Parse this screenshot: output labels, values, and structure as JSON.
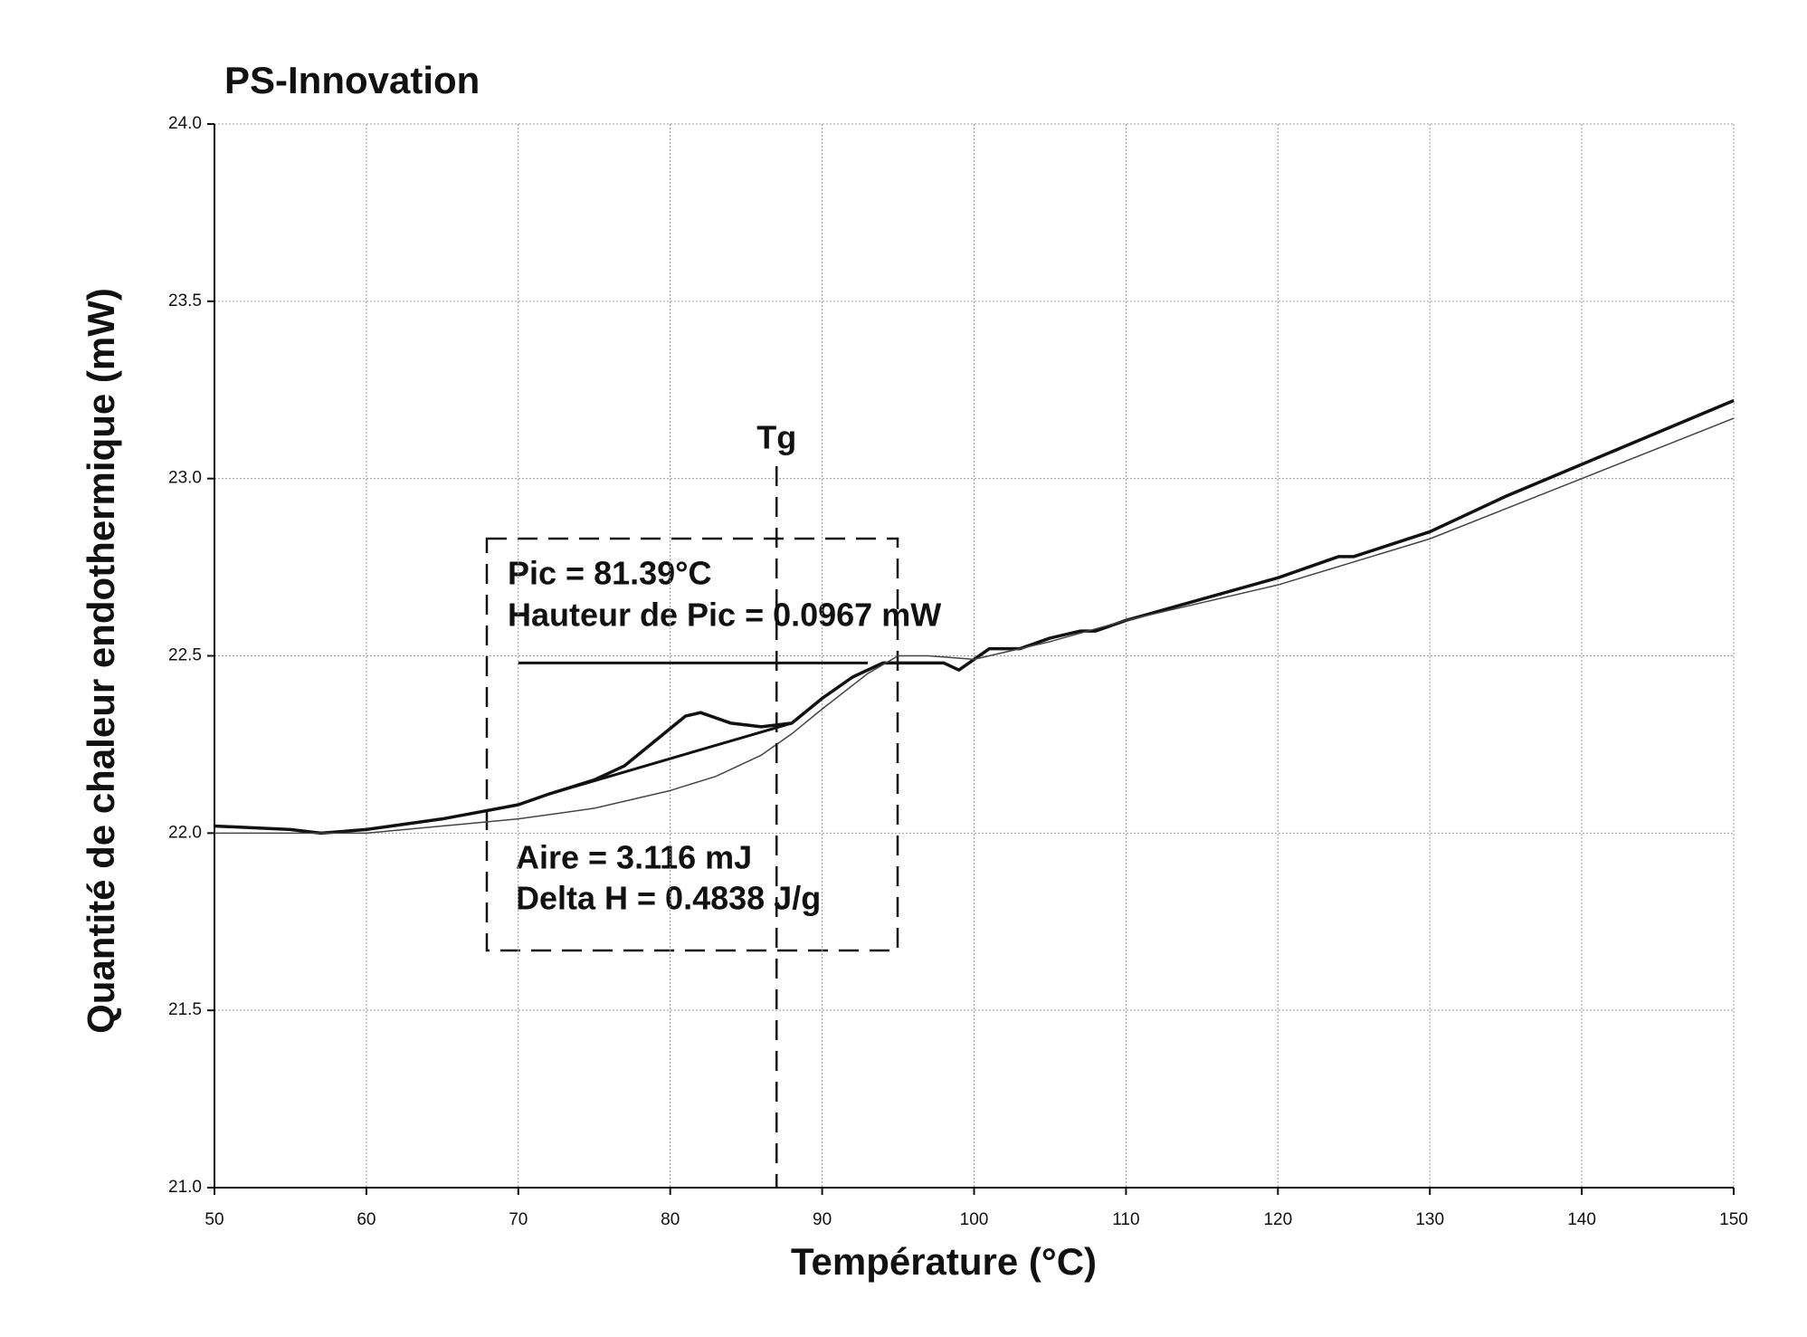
{
  "chart_data": {
    "type": "line",
    "title": "PS-Innovation",
    "x_label": "Température (°C)",
    "y_label": "Quantité de chaleur endothermique (mW)",
    "xlim": [
      50,
      150
    ],
    "xticks": [
      50,
      60,
      70,
      80,
      90,
      100,
      110,
      120,
      130,
      140,
      150
    ],
    "ylim": [
      21,
      24
    ],
    "yticks": [
      {
        "value": 21,
        "label": "21.0"
      },
      21.5,
      {
        "value": 22,
        "label": "22.0"
      },
      22.5,
      {
        "value": 23,
        "label": "23.0"
      },
      23.5,
      {
        "value": 24,
        "label": "24.0"
      }
    ],
    "grid": true,
    "series": [
      {
        "color": "#111111",
        "width": 3.5,
        "x": [
          50,
          55,
          57,
          60,
          65,
          70,
          72,
          75,
          77,
          79,
          81,
          82,
          84,
          86,
          88,
          90,
          92,
          94,
          96,
          98,
          99,
          100,
          101,
          103,
          105,
          107,
          108,
          110,
          115,
          120,
          124,
          125,
          130,
          135,
          140,
          145,
          150
        ],
        "values": [
          22.02,
          22.01,
          22.0,
          22.01,
          22.04,
          22.08,
          22.11,
          22.15,
          22.19,
          22.26,
          22.33,
          22.34,
          22.31,
          22.3,
          22.31,
          22.38,
          22.44,
          22.48,
          22.48,
          22.48,
          22.46,
          22.49,
          22.52,
          22.52,
          22.55,
          22.57,
          22.57,
          22.6,
          22.66,
          22.72,
          22.78,
          22.78,
          22.85,
          22.95,
          23.04,
          23.13,
          23.22
        ]
      },
      {
        "color": "#444444",
        "width": 1.5,
        "x": [
          50,
          60,
          65,
          70,
          75,
          80,
          83,
          86,
          88,
          90,
          93,
          95,
          97,
          100,
          105,
          110,
          120,
          130,
          140,
          150
        ],
        "values": [
          22.0,
          22.0,
          22.02,
          22.04,
          22.07,
          22.12,
          22.16,
          22.22,
          22.28,
          22.35,
          22.45,
          22.5,
          22.5,
          22.49,
          22.54,
          22.6,
          22.7,
          22.83,
          23.0,
          23.17
        ]
      },
      {
        "color": "#111111",
        "width": 3,
        "x": [
          72,
          88
        ],
        "values": [
          22.11,
          22.31
        ]
      }
    ],
    "peak_line": {
      "x": [
        70,
        93
      ],
      "y": 22.48
    },
    "tg": {
      "label": "Tg",
      "x": 87
    },
    "annotations": [
      "Pic = 81.39°C",
      "Hauteur de Pic = 0.0967 mW",
      "Aire = 3.116 mJ",
      "Delta H = 0.4838 J/g"
    ]
  }
}
